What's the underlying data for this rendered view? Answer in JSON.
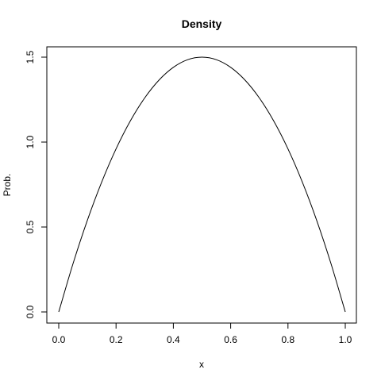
{
  "chart_data": {
    "type": "line",
    "title": "Density",
    "xlabel": "x",
    "ylabel": "Prob.",
    "xlim": [
      0,
      1
    ],
    "ylim": [
      0,
      1.5
    ],
    "x_ticks": [
      0.0,
      0.2,
      0.4,
      0.6,
      0.8,
      1.0
    ],
    "x_tick_labels": [
      "0.0",
      "0.2",
      "0.4",
      "0.6",
      "0.8",
      "1.0"
    ],
    "y_ticks": [
      0.0,
      0.5,
      1.0,
      1.5
    ],
    "y_tick_labels": [
      "0.0",
      "0.5",
      "1.0",
      "1.5"
    ],
    "grid": false,
    "series": [
      {
        "color": "#000000",
        "x": [
          0.0,
          0.05,
          0.1,
          0.15,
          0.2,
          0.25,
          0.3,
          0.35,
          0.4,
          0.45,
          0.5,
          0.55,
          0.6,
          0.65,
          0.7,
          0.75,
          0.8,
          0.85,
          0.9,
          0.95,
          1.0
        ],
        "y": [
          0.0,
          0.285,
          0.54,
          0.765,
          0.96,
          1.125,
          1.26,
          1.365,
          1.44,
          1.485,
          1.5,
          1.485,
          1.44,
          1.365,
          1.26,
          1.125,
          0.96,
          0.765,
          0.54,
          0.285,
          0.0
        ]
      }
    ]
  }
}
